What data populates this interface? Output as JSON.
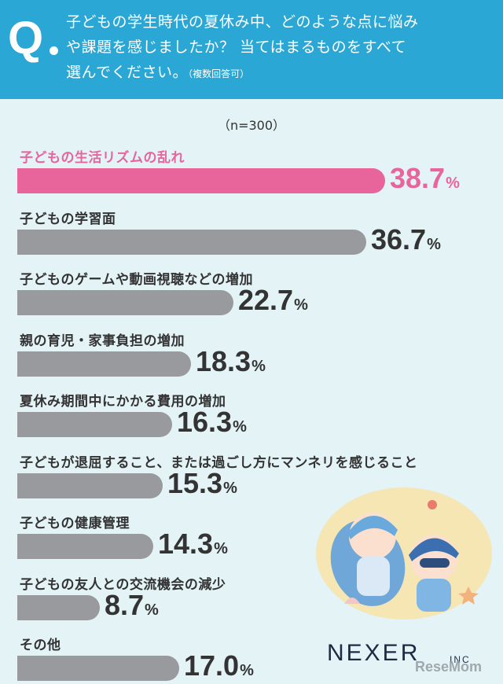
{
  "question": {
    "mark": "Q",
    "line1": "子どもの学生時代の夏休み中、どのような点に悩み",
    "line2": "や課題を感じましたか？ 当てはまるものをすべて",
    "line3": "選んでください。",
    "note": "（複数回答可）"
  },
  "sample_note": "（n=300）",
  "colors": {
    "header": "#2aa7d4",
    "highlight": "#e8659c",
    "bar": "#999a9e",
    "background": "#e3f3f6"
  },
  "chart_data": {
    "type": "bar",
    "orientation": "horizontal",
    "unit": "%",
    "xlim": [
      0,
      38.7
    ],
    "categories": [
      "子どもの生活リズムの乱れ",
      "子どもの学習面",
      "子どものゲームや動画視聴などの増加",
      "親の育児・家事負担の増加",
      "夏休み期間中にかかる費用の増加",
      "子どもが退屈すること、または過ごし方にマンネリを感じること",
      "子どもの健康管理",
      "子どもの友人との交流機会の減少",
      "その他"
    ],
    "values": [
      38.7,
      36.7,
      22.7,
      18.3,
      16.3,
      15.3,
      14.3,
      8.7,
      17.0
    ],
    "value_labels": [
      "38.7",
      "36.7",
      "22.7",
      "18.3",
      "16.3",
      "15.3",
      "14.3",
      "8.7",
      "17.0"
    ],
    "highlight_index": 0
  },
  "logo": {
    "name": "NEXER",
    "suffix": "INC"
  },
  "credit": "ReseMom"
}
